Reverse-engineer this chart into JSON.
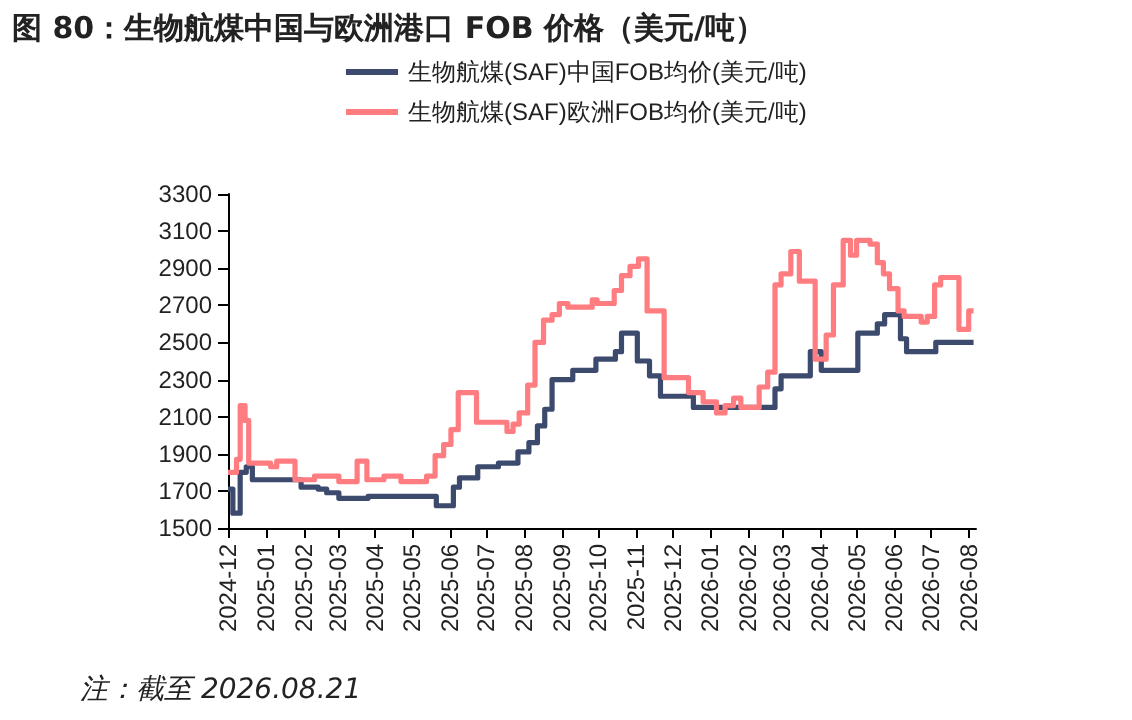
{
  "chart_data": {
    "type": "step",
    "title": "图 80：生物航煤中国与欧洲港口 FOB 价格（美元/吨）",
    "annotations": [
      "注：截至 2026.08.21"
    ],
    "xlim": [
      "2024-12",
      "2026-08-07"
    ],
    "xticks": [
      "2024-12",
      "2025-01",
      "2025-02",
      "2025-03",
      "2025-04",
      "2025-05",
      "2025-06",
      "2025-07",
      "2025-08",
      "2025-09",
      "2025-10",
      "2025-11",
      "2025-12",
      "2026-01",
      "2026-02",
      "2026-03",
      "2026-04",
      "2026-05",
      "2026-06",
      "2026-07",
      "2026-08"
    ],
    "ylim": [
      1500,
      3300
    ],
    "yticks": [
      1500,
      1700,
      1900,
      2100,
      2300,
      2500,
      2700,
      2900,
      3100,
      3300
    ],
    "grid": false,
    "legend": "top",
    "marker": "none",
    "line_style": "solid",
    "series": [
      {
        "name": "生物航煤(SAF)中国FOB均价(美元/吨)",
        "color": "#3c4a6e",
        "x": [
          "2024-12-01",
          "2024-12-05",
          "2024-12-11",
          "2024-12-16",
          "2024-12-21",
          "2025-01-30",
          "2025-02-13",
          "2025-02-20",
          "2025-03-02",
          "2025-03-26",
          "2025-05-21",
          "2025-06-04",
          "2025-06-09",
          "2025-06-24",
          "2025-07-11",
          "2025-07-27",
          "2025-08-05",
          "2025-08-12",
          "2025-08-18",
          "2025-08-24",
          "2025-09-10",
          "2025-09-29",
          "2025-10-15",
          "2025-10-20",
          "2025-11-02",
          "2025-11-12",
          "2025-11-21",
          "2025-12-18",
          "2026-02-23",
          "2026-02-28",
          "2026-03-24",
          "2026-04-02",
          "2026-05-02",
          "2026-05-18",
          "2026-05-24",
          "2026-06-06",
          "2026-06-11",
          "2026-07-05",
          "2026-08-05"
        ],
        "values": [
          1710,
          1580,
          1800,
          1830,
          1760,
          1720,
          1710,
          1690,
          1660,
          1670,
          1620,
          1720,
          1770,
          1830,
          1850,
          1910,
          1960,
          2050,
          2140,
          2300,
          2350,
          2410,
          2450,
          2550,
          2400,
          2320,
          2210,
          2150,
          2250,
          2320,
          2450,
          2350,
          2550,
          2600,
          2650,
          2520,
          2450,
          2500,
          2500
        ]
      },
      {
        "name": "生物航煤(SAF)欧洲FOB均价(美元/吨)",
        "color": "#ff7c80",
        "x": [
          "2024-12-01",
          "2024-12-08",
          "2024-12-11",
          "2024-12-15",
          "2024-12-18",
          "2025-01-05",
          "2025-01-10",
          "2025-01-25",
          "2025-02-10",
          "2025-03-02",
          "2025-03-17",
          "2025-03-25",
          "2025-04-08",
          "2025-04-22",
          "2025-05-13",
          "2025-05-20",
          "2025-05-27",
          "2025-06-02",
          "2025-06-08",
          "2025-06-23",
          "2025-07-18",
          "2025-07-23",
          "2025-07-28",
          "2025-08-04",
          "2025-08-10",
          "2025-08-17",
          "2025-08-24",
          "2025-08-30",
          "2025-09-06",
          "2025-09-26",
          "2025-09-30",
          "2025-10-14",
          "2025-10-20",
          "2025-10-27",
          "2025-11-03",
          "2025-11-10",
          "2025-11-24",
          "2025-12-14",
          "2025-12-26",
          "2026-01-06",
          "2026-01-13",
          "2026-01-20",
          "2026-01-26",
          "2026-02-10",
          "2026-02-17",
          "2026-02-23",
          "2026-02-28",
          "2026-03-08",
          "2026-03-15",
          "2026-03-28",
          "2026-04-06",
          "2026-04-12",
          "2026-04-20",
          "2026-04-26",
          "2026-05-01",
          "2026-05-12",
          "2026-05-18",
          "2026-05-23",
          "2026-05-28",
          "2026-06-04",
          "2026-06-09",
          "2026-06-23",
          "2026-06-28",
          "2026-07-04",
          "2026-07-09",
          "2026-07-24",
          "2026-08-01",
          "2026-08-05"
        ],
        "values": [
          1800,
          1870,
          2160,
          2080,
          1850,
          1830,
          1860,
          1760,
          1780,
          1750,
          1860,
          1760,
          1780,
          1750,
          1780,
          1890,
          1950,
          2030,
          2230,
          2070,
          2020,
          2060,
          2120,
          2270,
          2500,
          2620,
          2650,
          2710,
          2690,
          2730,
          2710,
          2780,
          2860,
          2910,
          2950,
          2670,
          2310,
          2230,
          2180,
          2120,
          2160,
          2200,
          2150,
          2260,
          2340,
          2810,
          2870,
          2990,
          2830,
          2410,
          2540,
          2810,
          3050,
          2970,
          3050,
          3030,
          2930,
          2870,
          2790,
          2670,
          2640,
          2610,
          2640,
          2810,
          2850,
          2570,
          2670,
          2670
        ]
      }
    ]
  }
}
